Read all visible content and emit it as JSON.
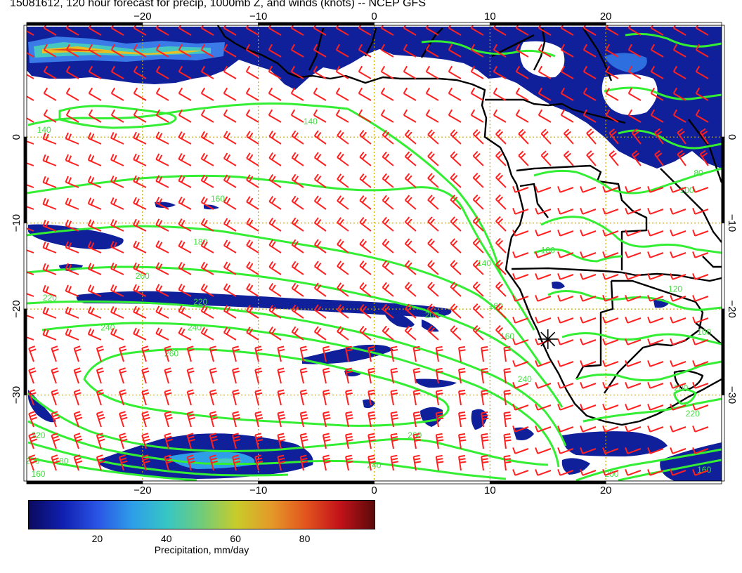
{
  "title": "15081612, 120 hour forecast for precip, 1000mb Z, and winds (knots) -- NCEP GFS",
  "map": {
    "lon_range": [
      -30,
      30
    ],
    "lat_range": [
      -40,
      13
    ],
    "lon_ticks": [
      -20,
      -10,
      0,
      10,
      20
    ],
    "lat_ticks": [
      0,
      -10,
      -20,
      -30
    ],
    "lon_tick_labels": [
      "−20",
      "−10",
      "0",
      "10",
      "20"
    ],
    "lat_tick_labels": [
      "0",
      "−10",
      "−20",
      "−30"
    ],
    "gridlines": true,
    "gridline_color": "#c8a800",
    "contour_color": "#33ee33",
    "wind_barb_color": "#ff2020",
    "precip_base_color": "#10209a",
    "coastline_color": "#000000",
    "station_marker": {
      "lon": 15,
      "lat": -23.5,
      "symbol": "asterisk"
    },
    "contour_labels": [
      "140",
      "160",
      "180",
      "200",
      "220",
      "240",
      "240",
      "260",
      "200",
      "220",
      "200",
      "180",
      "160",
      "140",
      "180",
      "160",
      "240",
      "260",
      "240",
      "200",
      "160",
      "200",
      "220",
      "220",
      "180",
      "100",
      "80",
      "100",
      "140",
      "120"
    ],
    "contour_label_pos": [
      [
        -28.5,
        0.5
      ],
      [
        -13.5,
        -7.5
      ],
      [
        -15,
        -12.5
      ],
      [
        -20,
        -16.5
      ],
      [
        -28,
        -19
      ],
      [
        -23,
        -22.5
      ],
      [
        -15.5,
        -22.5
      ],
      [
        -17.5,
        -25.5
      ],
      [
        5,
        -21
      ],
      [
        -29,
        -35
      ],
      [
        -29.5,
        -38
      ],
      [
        -27,
        -38
      ],
      [
        -29,
        -39.5
      ],
      [
        9.5,
        -15
      ],
      [
        10.5,
        -20
      ],
      [
        11.5,
        -23.5
      ],
      [
        13,
        -28.5
      ],
      [
        3.5,
        -35
      ],
      [
        0,
        -38.5
      ],
      [
        20.5,
        -39.5
      ],
      [
        28.5,
        -39
      ],
      [
        26.5,
        -29.5
      ],
      [
        27.5,
        -32.5
      ],
      [
        -15,
        -19.5
      ],
      [
        15,
        -13.5
      ],
      [
        27,
        -6.5
      ],
      [
        28,
        -4.5
      ],
      [
        28.5,
        -23
      ],
      [
        -5.5,
        1.5
      ],
      [
        26,
        -18
      ]
    ]
  },
  "chart_data": {
    "type": "heatmap",
    "title": "15081612, 120 hour forecast for precip, 1000mb Z, and winds (knots) -- NCEP GFS",
    "xlabel": "",
    "ylabel": "",
    "xlim": [
      -30,
      30
    ],
    "ylim": [
      -40,
      13
    ],
    "x_ticks": [
      -20,
      -10,
      0,
      10,
      20
    ],
    "y_ticks": [
      0,
      -10,
      -20,
      -30
    ],
    "colorbar": {
      "label": "Precipitation, mm/day",
      "ticks": [
        20,
        40,
        60,
        80
      ],
      "range": [
        0,
        100
      ]
    },
    "contour_levels": [
      80,
      100,
      120,
      140,
      160,
      180,
      200,
      220,
      240,
      260
    ],
    "grid": true
  },
  "colorbar": {
    "label": "Precipitation, mm/day",
    "tick_labels": [
      "20",
      "40",
      "60",
      "80"
    ],
    "tick_values": [
      20,
      40,
      60,
      80
    ],
    "range": [
      0,
      100
    ]
  }
}
